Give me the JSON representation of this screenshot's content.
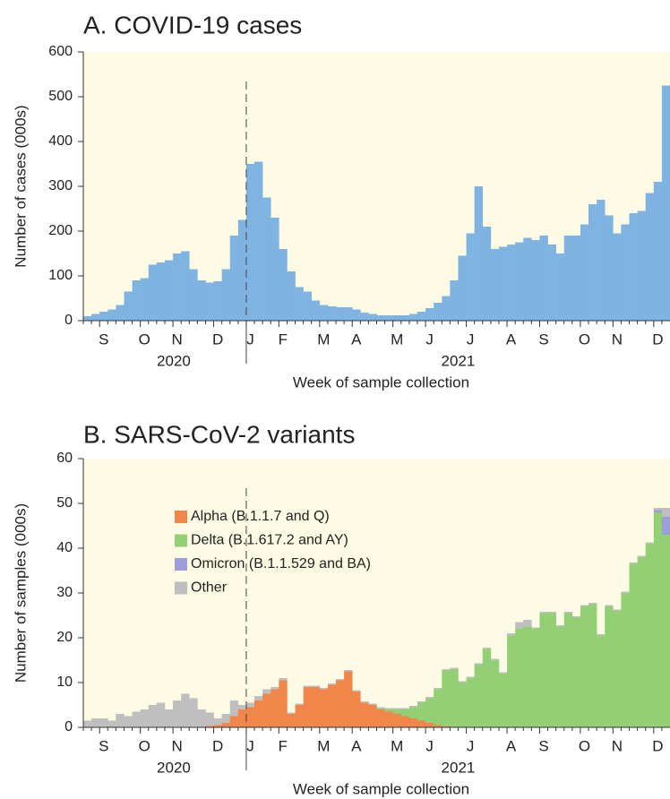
{
  "chart_data": [
    {
      "type": "bar",
      "title": "A.  COVID-19 cases",
      "ylabel": "Number of cases (000s)",
      "xlabel": "Week of sample collection",
      "year_labels": [
        "2020",
        "2021"
      ],
      "categories": [
        null,
        null,
        "S",
        null,
        null,
        null,
        null,
        "O",
        null,
        null,
        null,
        "N",
        null,
        null,
        null,
        null,
        "D",
        null,
        null,
        null,
        "J",
        null,
        null,
        null,
        "F",
        null,
        null,
        null,
        null,
        "M",
        null,
        null,
        null,
        "A",
        null,
        null,
        null,
        null,
        "M",
        null,
        null,
        null,
        "J",
        null,
        null,
        null,
        null,
        "J",
        null,
        null,
        null,
        null,
        "A",
        null,
        null,
        null,
        "S",
        null,
        null,
        null,
        null,
        "O",
        null,
        null,
        null,
        "N",
        null,
        null,
        null,
        null,
        "D",
        null
      ],
      "values": [
        10,
        15,
        20,
        25,
        35,
        65,
        90,
        95,
        125,
        130,
        135,
        150,
        155,
        115,
        90,
        85,
        88,
        115,
        190,
        225,
        350,
        355,
        275,
        230,
        160,
        110,
        75,
        65,
        45,
        35,
        32,
        30,
        30,
        25,
        18,
        15,
        12,
        12,
        12,
        12,
        15,
        20,
        28,
        40,
        55,
        90,
        145,
        195,
        300,
        210,
        160,
        165,
        170,
        175,
        185,
        180,
        190,
        170,
        150,
        190,
        190,
        215,
        260,
        270,
        235,
        195,
        215,
        240,
        245,
        285,
        310,
        525
      ],
      "color": "#7fb4e2",
      "ylim": [
        0,
        600
      ],
      "yticks": [
        0,
        100,
        200,
        300,
        400,
        500,
        600
      ]
    },
    {
      "type": "stacked_bar",
      "title": "B.  SARS-CoV-2 variants",
      "ylabel": "Number of samples (000s)",
      "xlabel": "Week of sample collection",
      "year_labels": [
        "2020",
        "2021"
      ],
      "categories": [
        null,
        null,
        "S",
        null,
        null,
        null,
        null,
        "O",
        null,
        null,
        null,
        "N",
        null,
        null,
        null,
        null,
        "D",
        null,
        null,
        null,
        "J",
        null,
        null,
        null,
        "F",
        null,
        null,
        null,
        null,
        "M",
        null,
        null,
        null,
        "A",
        null,
        null,
        null,
        null,
        "M",
        null,
        null,
        null,
        "J",
        null,
        null,
        null,
        null,
        "J",
        null,
        null,
        null,
        null,
        "A",
        null,
        null,
        null,
        "S",
        null,
        null,
        null,
        null,
        "O",
        null,
        null,
        null,
        "N",
        null,
        null,
        null,
        null,
        "D",
        null
      ],
      "legend": "upper left",
      "series": [
        {
          "name": "Alpha (B.1.1.7 and Q)",
          "color": "#f2864a",
          "values": [
            0,
            0,
            0,
            0,
            0,
            0,
            0,
            0,
            0,
            0,
            0,
            0,
            0,
            0,
            0,
            0.3,
            0.5,
            1,
            2.5,
            4,
            4.5,
            6,
            7.5,
            8.5,
            10.5,
            3,
            5,
            9,
            9,
            8.5,
            9.5,
            10.5,
            12.5,
            8,
            5.5,
            5,
            4,
            3.5,
            3,
            2.5,
            2,
            1.5,
            1,
            0.5,
            0.2,
            0,
            0,
            0,
            0,
            0,
            0,
            0,
            0,
            0,
            0,
            0,
            0,
            0,
            0,
            0,
            0,
            0,
            0,
            0,
            0,
            0,
            0,
            0,
            0,
            0,
            0,
            0
          ]
        },
        {
          "name": "Delta (B.1.617.2 and AY)",
          "color": "#92cf75",
          "values": [
            0,
            0,
            0,
            0,
            0,
            0,
            0,
            0,
            0,
            0,
            0,
            0,
            0,
            0,
            0,
            0,
            0,
            0,
            0,
            0,
            0,
            0,
            0,
            0,
            0,
            0,
            0,
            0,
            0,
            0,
            0,
            0,
            0,
            0,
            0,
            0,
            0.2,
            0.5,
            1,
            1.5,
            2.5,
            4,
            5.5,
            8,
            12.5,
            13,
            10,
            11,
            14,
            17.5,
            15,
            12,
            20.5,
            22,
            22.5,
            22,
            25.5,
            25.5,
            22.5,
            25.5,
            24.5,
            27,
            27.5,
            20.5,
            27,
            26,
            30,
            36.5,
            38,
            41,
            48,
            43
          ]
        },
        {
          "name": "Omicron (B.1.1.529 and BA)",
          "color": "#9d9fda",
          "values": [
            0,
            0,
            0,
            0,
            0,
            0,
            0,
            0,
            0,
            0,
            0,
            0,
            0,
            0,
            0,
            0,
            0,
            0,
            0,
            0,
            0,
            0,
            0,
            0,
            0,
            0,
            0,
            0,
            0,
            0,
            0,
            0,
            0,
            0,
            0,
            0,
            0,
            0,
            0,
            0,
            0,
            0,
            0,
            0,
            0,
            0,
            0,
            0,
            0,
            0,
            0,
            0,
            0,
            0,
            0,
            0,
            0,
            0,
            0,
            0,
            0,
            0,
            0,
            0,
            0,
            0,
            0,
            0,
            0,
            0,
            0.5,
            4
          ]
        },
        {
          "name": "Other",
          "color": "#bfbfbf",
          "values": [
            1.5,
            2,
            2,
            1.5,
            3,
            2.5,
            3.5,
            4,
            5,
            5.5,
            4,
            6,
            7.5,
            6.5,
            4,
            3,
            1.5,
            2,
            3.5,
            1,
            1,
            1,
            1,
            0.5,
            0.5,
            0.3,
            0.3,
            0.3,
            0.3,
            0.3,
            0.3,
            0.3,
            0.3,
            0.3,
            0.3,
            0.3,
            0.3,
            0.3,
            0.3,
            0.3,
            0.3,
            0.3,
            0.3,
            0.3,
            0.3,
            0.3,
            0.3,
            0.3,
            0.3,
            0.3,
            0.3,
            0.3,
            0.5,
            1.5,
            1.5,
            0.3,
            0.3,
            0.3,
            0.3,
            0.3,
            0.3,
            0.3,
            0.3,
            0.3,
            0.3,
            0.3,
            0.3,
            0.3,
            0.3,
            0.3,
            0.5,
            2
          ]
        }
      ],
      "ylim": [
        0,
        60
      ],
      "yticks": [
        0,
        10,
        20,
        30,
        40,
        50,
        60
      ]
    }
  ]
}
